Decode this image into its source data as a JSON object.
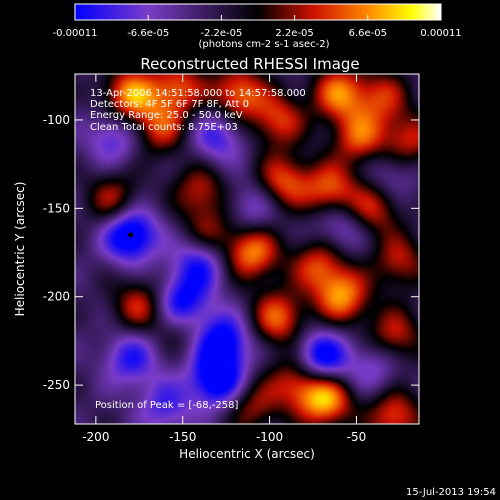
{
  "chart_data": {
    "type": "heatmap",
    "title": "Reconstructed RHESSI Image",
    "xlabel": "Heliocentric X (arcsec)",
    "ylabel": "Heliocentric Y (arcsec)",
    "xlim": [
      -212,
      -14
    ],
    "ylim": [
      -272,
      -74
    ],
    "x_ticks": [
      -200,
      -150,
      -100,
      -50
    ],
    "y_ticks": [
      -100,
      -150,
      -200,
      -250
    ],
    "x_tick_labels": [
      "-200",
      "-150",
      "-100",
      "-50"
    ],
    "y_tick_labels": [
      "-100",
      "-150",
      "-200",
      "-250"
    ],
    "colorbar": {
      "range": [
        -0.00011,
        0.00011
      ],
      "ticks": [
        -0.00011,
        -6.6e-05,
        -2.2e-05,
        2.2e-05,
        6.6e-05,
        0.00011
      ],
      "tick_labels": [
        "-0.00011",
        "-6.6e-05",
        "-2.2e-05",
        "2.2e-05",
        "6.6e-05",
        "0.00011"
      ],
      "units_label": "(photons cm-2 s-1 asec-2)",
      "colors": [
        "#0000ff",
        "#7a3cc8",
        "#000000",
        "#cc1100",
        "#ff8800",
        "#ffff00",
        "#ffffff"
      ]
    },
    "info_lines": [
      "13-Apr-2006 14:51:58.000 to 14:57:58.000",
      "Detectors: 4F 5F 6F 7F 8F, Att 0",
      "Energy Range: 25.0 - 50.0 keV",
      "Clean     Total counts: 8.75E+03"
    ],
    "peak_text": "Position of Peak = [-68,-258]",
    "peak": [
      -68,
      -258
    ],
    "minimum_marker": [
      -180,
      -165
    ],
    "bright_sources": [
      {
        "x": -180,
        "y": -86,
        "v": 0.9
      },
      {
        "x": -153,
        "y": -82,
        "v": 0.7
      },
      {
        "x": -118,
        "y": -85,
        "v": 0.8
      },
      {
        "x": -95,
        "y": -100,
        "v": 0.65
      },
      {
        "x": -60,
        "y": -85,
        "v": 0.8
      },
      {
        "x": -35,
        "y": -87,
        "v": 0.55
      },
      {
        "x": -48,
        "y": -110,
        "v": 0.7
      },
      {
        "x": -20,
        "y": -112,
        "v": 0.6
      },
      {
        "x": -163,
        "y": -105,
        "v": 0.6
      },
      {
        "x": -190,
        "y": -145,
        "v": 0.55
      },
      {
        "x": -140,
        "y": -140,
        "v": 0.55
      },
      {
        "x": -92,
        "y": -135,
        "v": 0.7
      },
      {
        "x": -65,
        "y": -140,
        "v": 0.75
      },
      {
        "x": -40,
        "y": -150,
        "v": 0.6
      },
      {
        "x": -110,
        "y": -175,
        "v": 0.85
      },
      {
        "x": -72,
        "y": -182,
        "v": 0.65
      },
      {
        "x": -25,
        "y": -180,
        "v": 0.55
      },
      {
        "x": -135,
        "y": -165,
        "v": 0.5
      },
      {
        "x": -175,
        "y": -205,
        "v": 0.6
      },
      {
        "x": -150,
        "y": -215,
        "v": 0.45
      },
      {
        "x": -95,
        "y": -212,
        "v": 0.75
      },
      {
        "x": -58,
        "y": -200,
        "v": 0.85
      },
      {
        "x": -28,
        "y": -222,
        "v": 0.6
      },
      {
        "x": -85,
        "y": -248,
        "v": 0.6
      },
      {
        "x": -110,
        "y": -262,
        "v": 0.5
      },
      {
        "x": -68,
        "y": -258,
        "v": 1.0
      },
      {
        "x": -28,
        "y": -268,
        "v": 0.7
      }
    ],
    "dark_sources": [
      {
        "x": -180,
        "y": -165,
        "v": -1.0
      },
      {
        "x": -150,
        "y": -205,
        "v": -0.95
      },
      {
        "x": -130,
        "y": -247,
        "v": -0.95
      },
      {
        "x": -127,
        "y": -225,
        "v": -0.85
      },
      {
        "x": -140,
        "y": -180,
        "v": -0.7
      },
      {
        "x": -70,
        "y": -235,
        "v": -0.9
      },
      {
        "x": -180,
        "y": -235,
        "v": -0.6
      },
      {
        "x": -190,
        "y": -110,
        "v": -0.5
      },
      {
        "x": -130,
        "y": -110,
        "v": -0.55
      },
      {
        "x": -60,
        "y": -160,
        "v": -0.45
      },
      {
        "x": -30,
        "y": -130,
        "v": -0.35
      },
      {
        "x": -110,
        "y": -150,
        "v": -0.4
      },
      {
        "x": -40,
        "y": -240,
        "v": -0.4
      },
      {
        "x": -160,
        "y": -262,
        "v": -0.5
      }
    ]
  },
  "footer": {
    "timestamp": "15-Jul-2013 19:54"
  }
}
